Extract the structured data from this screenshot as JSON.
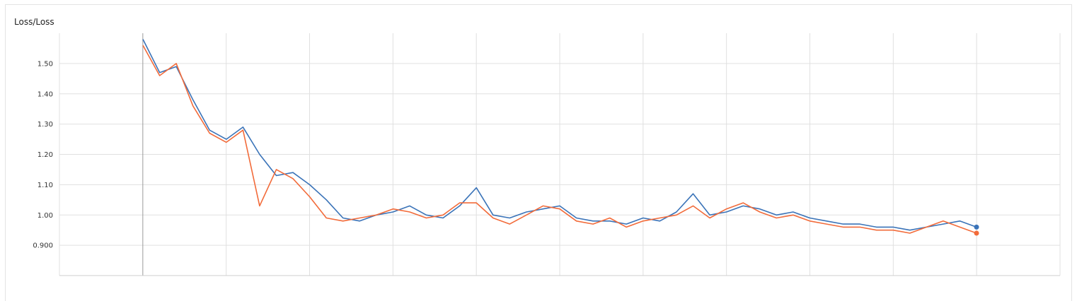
{
  "panel": {
    "title": "Loss/Loss"
  },
  "colors": {
    "series_a": "#3a73b8",
    "series_b": "#f26b3a",
    "grid": "#e0e0e0"
  },
  "chart_data": {
    "type": "line",
    "title": "Loss/Loss",
    "xlabel": "",
    "ylabel": "",
    "ylim": [
      0.8,
      1.6
    ],
    "yticks": [
      {
        "value": 1.5,
        "label": "1.50"
      },
      {
        "value": 1.4,
        "label": "1.40"
      },
      {
        "value": 1.3,
        "label": "1.30"
      },
      {
        "value": 1.2,
        "label": "1.20"
      },
      {
        "value": 1.1,
        "label": "1.10"
      },
      {
        "value": 1.0,
        "label": "1.00"
      },
      {
        "value": 0.9,
        "label": "0.900"
      }
    ],
    "grid": true,
    "x_gridlines": 12,
    "series": [
      {
        "color": "#3a73b8",
        "x": [
          0,
          2,
          4,
          6,
          8,
          10,
          12,
          14,
          16,
          18,
          20,
          22,
          24,
          26,
          28,
          30,
          32,
          34,
          36,
          38,
          40,
          42,
          44,
          46,
          48,
          50,
          52,
          54,
          56,
          58,
          60,
          62,
          64,
          66,
          68,
          70,
          72,
          74,
          76,
          78,
          80,
          82,
          84,
          86,
          88,
          90,
          92,
          94,
          96,
          98,
          100
        ],
        "values": [
          1.58,
          1.47,
          1.49,
          1.38,
          1.28,
          1.25,
          1.29,
          1.2,
          1.13,
          1.14,
          1.1,
          1.05,
          0.99,
          0.98,
          1.0,
          1.01,
          1.03,
          1.0,
          0.99,
          1.03,
          1.09,
          1.0,
          0.99,
          1.01,
          1.02,
          1.03,
          0.99,
          0.98,
          0.98,
          0.97,
          0.99,
          0.98,
          1.01,
          1.07,
          1.0,
          1.01,
          1.03,
          1.02,
          1.0,
          1.01,
          0.99,
          0.98,
          0.97,
          0.97,
          0.96,
          0.96,
          0.95,
          0.96,
          0.97,
          0.98,
          0.96
        ]
      },
      {
        "color": "#f26b3a",
        "x": [
          0,
          2,
          4,
          6,
          8,
          10,
          12,
          14,
          16,
          18,
          20,
          22,
          24,
          26,
          28,
          30,
          32,
          34,
          36,
          38,
          40,
          42,
          44,
          46,
          48,
          50,
          52,
          54,
          56,
          58,
          60,
          62,
          64,
          66,
          68,
          70,
          72,
          74,
          76,
          78,
          80,
          82,
          84,
          86,
          88,
          90,
          92,
          94,
          96,
          98,
          100
        ],
        "values": [
          1.56,
          1.46,
          1.5,
          1.36,
          1.27,
          1.24,
          1.28,
          1.03,
          1.15,
          1.12,
          1.06,
          0.99,
          0.98,
          0.99,
          1.0,
          1.02,
          1.01,
          0.99,
          1.0,
          1.04,
          1.04,
          0.99,
          0.97,
          1.0,
          1.03,
          1.02,
          0.98,
          0.97,
          0.99,
          0.96,
          0.98,
          0.99,
          1.0,
          1.03,
          0.99,
          1.02,
          1.04,
          1.01,
          0.99,
          1.0,
          0.98,
          0.97,
          0.96,
          0.96,
          0.95,
          0.95,
          0.94,
          0.96,
          0.98,
          0.96,
          0.94
        ]
      }
    ]
  }
}
